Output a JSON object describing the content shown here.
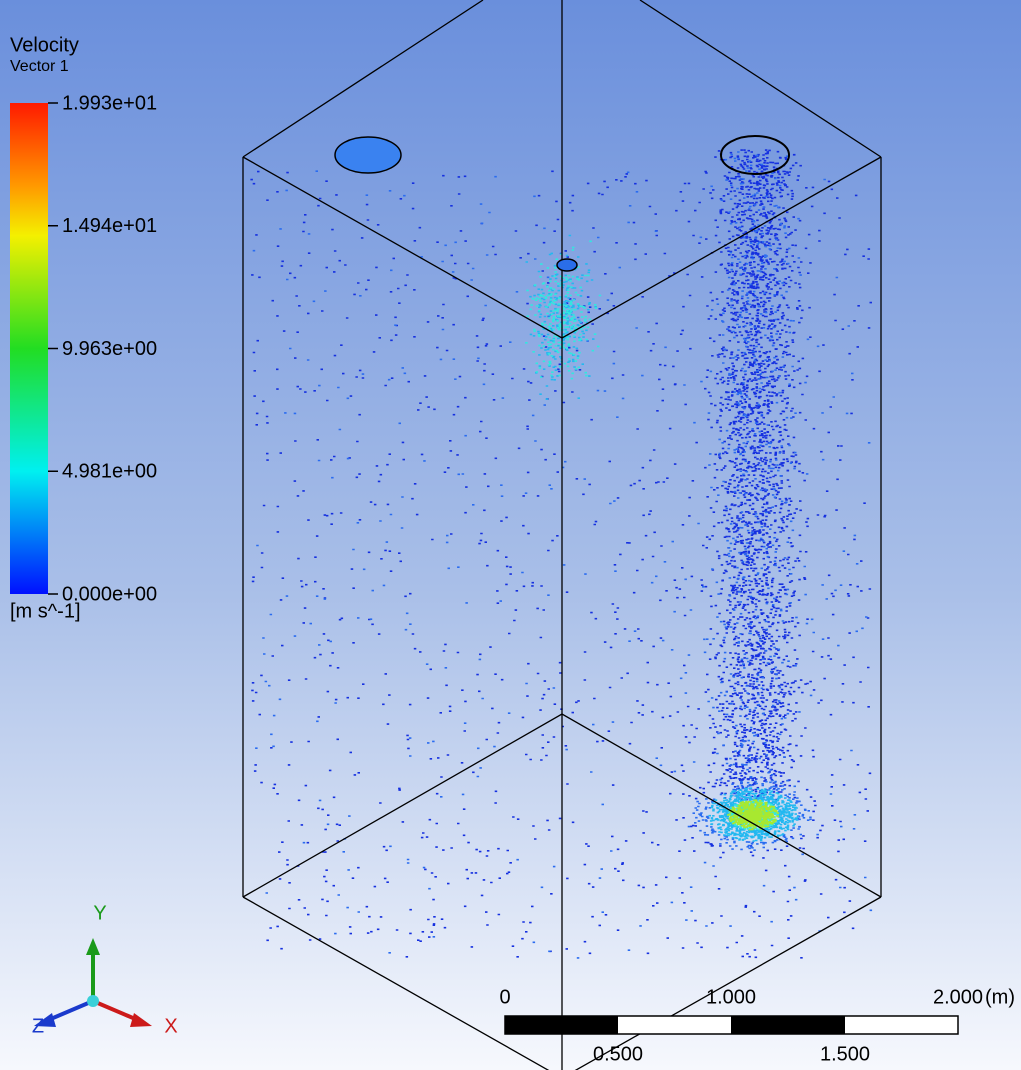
{
  "legend": {
    "title": "Velocity",
    "subtitle": "Vector 1",
    "ticks": [
      "1.993e+01",
      "1.494e+01",
      "9.963e+00",
      "4.981e+00",
      "0.000e+00"
    ],
    "unit": "[m s^-1]"
  },
  "axes": {
    "y": "Y",
    "z": "Z",
    "x": "X"
  },
  "scale_bar": {
    "top_labels": [
      "0",
      "1.000",
      "2.000"
    ],
    "unit": "(m)",
    "bottom_labels": [
      "0.500",
      "1.500"
    ]
  }
}
